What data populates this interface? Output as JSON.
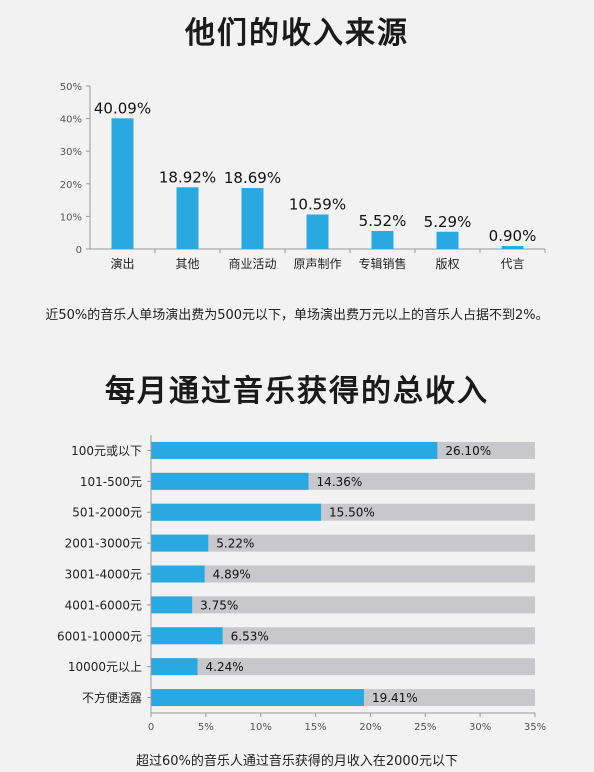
{
  "chart_data": [
    {
      "type": "bar",
      "title": "他们的收入来源",
      "categories": [
        "演出",
        "其他",
        "商业活动",
        "原声制作",
        "专辑销售",
        "版权",
        "代言"
      ],
      "values": [
        40.09,
        18.92,
        18.69,
        10.59,
        5.52,
        5.29,
        0.9
      ],
      "value_labels": [
        "40.09%",
        "18.92%",
        "18.69%",
        "10.59%",
        "5.52%",
        "5.29%",
        "0.90%"
      ],
      "ylim": [
        0,
        50
      ],
      "yticks": [
        "0",
        "10%",
        "20%",
        "30%",
        "40%",
        "50%"
      ],
      "color": "#29a9e1",
      "grid": false,
      "note": "近50%的音乐人单场演出费为500元以下，单场演出费万元以上的音乐人占据不到2%。"
    },
    {
      "type": "bar",
      "orientation": "horizontal",
      "title": "每月通过音乐获得的总收入",
      "categories": [
        "100元或以下",
        "101-500元",
        "501-2000元",
        "2001-3000元",
        "3001-4000元",
        "4001-6000元",
        "6001-10000元",
        "10000元以上",
        "不方便透露"
      ],
      "values": [
        26.1,
        14.36,
        15.5,
        5.22,
        4.89,
        3.75,
        6.53,
        4.24,
        19.41
      ],
      "value_labels": [
        "26.10%",
        "14.36%",
        "15.50%",
        "5.22%",
        "4.89%",
        "3.75%",
        "6.53%",
        "4.24%",
        "19.41%"
      ],
      "xlim": [
        0,
        35
      ],
      "xticks": [
        "0",
        "5%",
        "10%",
        "15%",
        "20%",
        "25%",
        "30%",
        "35%"
      ],
      "color": "#29a9e1",
      "track_color": "#c8c8cc",
      "grid": false,
      "note": "超过60%的音乐人通过音乐获得的月收入在2000元以下"
    }
  ]
}
